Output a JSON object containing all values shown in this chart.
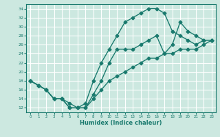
{
  "xlabel": "Humidex (Indice chaleur)",
  "bg_color": "#cce8e0",
  "line_color": "#1a7a6e",
  "xlim": [
    -0.5,
    23.5
  ],
  "ylim": [
    11,
    35
  ],
  "yticks": [
    12,
    14,
    16,
    18,
    20,
    22,
    24,
    26,
    28,
    30,
    32,
    34
  ],
  "xticks": [
    0,
    1,
    2,
    3,
    4,
    5,
    6,
    7,
    8,
    9,
    10,
    11,
    12,
    13,
    14,
    15,
    16,
    17,
    18,
    19,
    20,
    21,
    22,
    23
  ],
  "line1_x": [
    0,
    1,
    2,
    3,
    4,
    5,
    6,
    7,
    8,
    9,
    10,
    11,
    12,
    13,
    14,
    15,
    16,
    17,
    18,
    19,
    20,
    21,
    22,
    23
  ],
  "line1_y": [
    18,
    17,
    16,
    14,
    14,
    12,
    12,
    13,
    18,
    22,
    25,
    28,
    31,
    32,
    33,
    34,
    34,
    33,
    29,
    28,
    27,
    26,
    27,
    27
  ],
  "line2_x": [
    0,
    1,
    2,
    3,
    4,
    5,
    6,
    7,
    8,
    9,
    10,
    11,
    12,
    13,
    14,
    15,
    16,
    17,
    18,
    19,
    20,
    21,
    22,
    23
  ],
  "line2_y": [
    18,
    17,
    16,
    14,
    14,
    12,
    12,
    12,
    15,
    18,
    22,
    25,
    25,
    25,
    26,
    27,
    28,
    24,
    26,
    31,
    29,
    28,
    27,
    27
  ],
  "line3_x": [
    0,
    1,
    2,
    3,
    4,
    5,
    6,
    7,
    8,
    9,
    10,
    11,
    12,
    13,
    14,
    15,
    16,
    17,
    18,
    19,
    20,
    21,
    22,
    23
  ],
  "line3_y": [
    18,
    17,
    16,
    14,
    14,
    13,
    12,
    12,
    14,
    16,
    18,
    19,
    20,
    21,
    22,
    23,
    23,
    24,
    24,
    25,
    25,
    25,
    26,
    27
  ]
}
